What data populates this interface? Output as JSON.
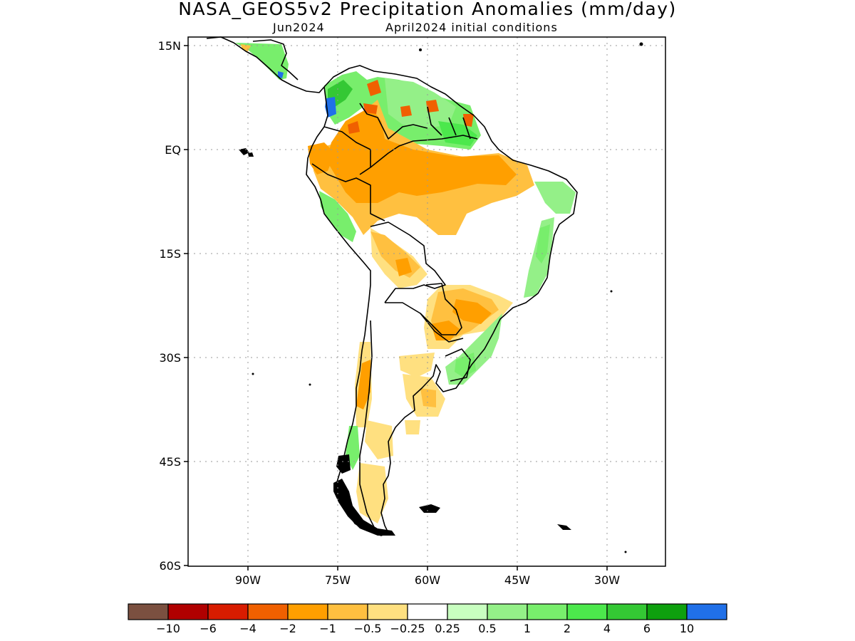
{
  "title": "NASA_GEOS5v2 Precipitation Anomalies (mm/day)",
  "subtitle": {
    "left": "Jun2024",
    "right": "April2024 initial conditions"
  },
  "map": {
    "lat_labels": [
      "15N",
      "EQ",
      "15S",
      "30S",
      "45S",
      "60S"
    ],
    "lon_labels": [
      "90W",
      "75W",
      "60W",
      "45W",
      "30W"
    ]
  },
  "colorbar": {
    "colors": [
      "#7b5040",
      "#b00000",
      "#d81c00",
      "#f06000",
      "#ff9f00",
      "#ffc040",
      "#ffe080",
      "#ffffff",
      "#c8ffc0",
      "#94f088",
      "#78ee6c",
      "#4ce84c",
      "#34c834",
      "#0ea00e",
      "#2070e8"
    ],
    "labels": [
      "−10",
      "−6",
      "−4",
      "−2",
      "−1",
      "−0.5",
      "−0.25",
      "0.25",
      "0.5",
      "1",
      "2",
      "4",
      "6",
      "10"
    ]
  }
}
